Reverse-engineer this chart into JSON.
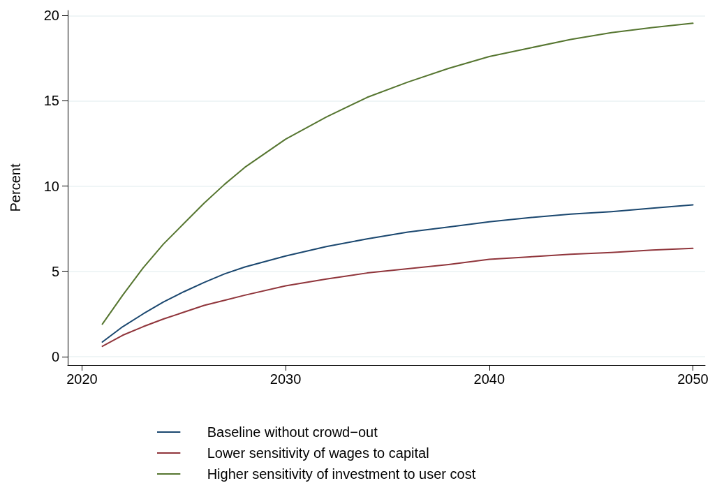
{
  "chart_data": {
    "type": "line",
    "ylabel": "Percent",
    "x": [
      2021,
      2022,
      2023,
      2024,
      2025,
      2026,
      2027,
      2028,
      2030,
      2032,
      2034,
      2036,
      2038,
      2040,
      2042,
      2044,
      2046,
      2048,
      2050
    ],
    "series": [
      {
        "name": "Baseline without crowd−out",
        "color": "#1a476f",
        "values": [
          0.85,
          1.75,
          2.5,
          3.2,
          3.8,
          4.35,
          4.85,
          5.25,
          5.9,
          6.45,
          6.9,
          7.3,
          7.6,
          7.9,
          8.15,
          8.35,
          8.5,
          8.7,
          8.9
        ]
      },
      {
        "name": "Lower sensitivity of wages to capital",
        "color": "#90353b",
        "values": [
          0.6,
          1.25,
          1.75,
          2.2,
          2.6,
          3.0,
          3.3,
          3.6,
          4.15,
          4.55,
          4.9,
          5.15,
          5.4,
          5.7,
          5.85,
          6.0,
          6.1,
          6.25,
          6.35
        ]
      },
      {
        "name": "Higher sensitivity of investment to user cost",
        "color": "#55752f",
        "values": [
          1.9,
          3.6,
          5.2,
          6.6,
          7.8,
          9.0,
          10.1,
          11.1,
          12.75,
          14.05,
          15.2,
          16.1,
          16.9,
          17.6,
          18.1,
          18.6,
          19.0,
          19.3,
          19.55
        ]
      }
    ],
    "xlim": [
      2019.3,
      2050.6
    ],
    "xticks": [
      2020,
      2030,
      2040,
      2050
    ],
    "ylim": [
      -0.5,
      20.3
    ],
    "yticks": [
      0,
      5,
      10,
      15,
      20
    ],
    "grid": "y",
    "legend": "bottom",
    "marker": "none",
    "line_style": "solid"
  }
}
